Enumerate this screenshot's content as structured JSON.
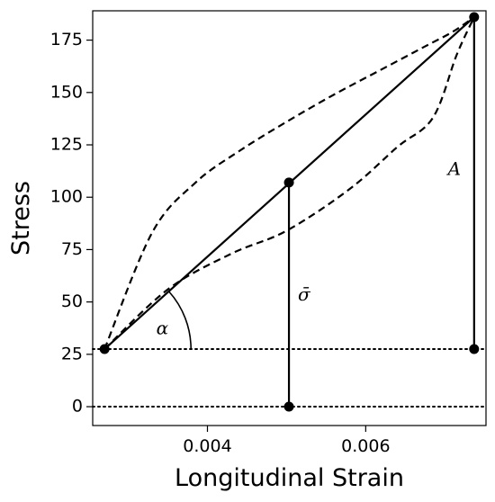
{
  "chart_data": {
    "type": "line",
    "title": "",
    "xlabel": "Longitudinal Strain",
    "ylabel": "Stress",
    "xlim": [
      0.00255,
      0.00752
    ],
    "ylim": [
      -9,
      189
    ],
    "x_ticks": [
      {
        "value": 0.004,
        "label": "0.004"
      },
      {
        "value": 0.006,
        "label": "0.006"
      }
    ],
    "y_ticks": [
      {
        "value": 0,
        "label": "0"
      },
      {
        "value": 25,
        "label": "25"
      },
      {
        "value": 50,
        "label": "50"
      },
      {
        "value": 75,
        "label": "75"
      },
      {
        "value": 100,
        "label": "100"
      },
      {
        "value": 125,
        "label": "125"
      },
      {
        "value": 150,
        "label": "150"
      },
      {
        "value": 175,
        "label": "175"
      }
    ],
    "grid": false,
    "series": [
      {
        "style": "dashed",
        "x": [
          0.0027,
          0.0033,
          0.00385,
          0.0044,
          0.005,
          0.0056,
          0.0062,
          0.00675,
          0.0071,
          0.00737
        ],
        "y": [
          27.5,
          83,
          107,
          122,
          136,
          149,
          161,
          172,
          179,
          186
        ]
      },
      {
        "style": "dashed",
        "x": [
          0.0027,
          0.0035,
          0.0043,
          0.005,
          0.0058,
          0.0064,
          0.00685,
          0.00715,
          0.00737
        ],
        "y": [
          27.5,
          56,
          73,
          84,
          104,
          124,
          138,
          168,
          186
        ]
      },
      {
        "style": "solid",
        "x": [
          0.0027,
          0.00737
        ],
        "y": [
          27.5,
          186
        ]
      },
      {
        "style": "solid",
        "x": [
          0.00503,
          0.00503
        ],
        "y": [
          0,
          107
        ]
      },
      {
        "style": "solid",
        "x": [
          0.00737,
          0.00737
        ],
        "y": [
          27.5,
          186
        ]
      }
    ],
    "points": [
      {
        "x": 0.0027,
        "y": 27.5
      },
      {
        "x": 0.00737,
        "y": 186
      },
      {
        "x": 0.00503,
        "y": 107
      },
      {
        "x": 0.00503,
        "y": 0
      },
      {
        "x": 0.00737,
        "y": 27.5
      }
    ],
    "hlines": [
      {
        "y": 27.5,
        "style": "dotted"
      },
      {
        "y": 0,
        "style": "dotted"
      }
    ],
    "angle_arc": {
      "center_x": 0.0027,
      "center_y": 27.5,
      "from_y": 27.5,
      "to_x": 0.00737,
      "to_y": 186,
      "label": "α"
    },
    "annotations": [
      {
        "text": "α",
        "x": 0.00343,
        "y": 37
      },
      {
        "text": "σ̄",
        "x": 0.00522,
        "y": 53
      },
      {
        "text": "A",
        "x": 0.00712,
        "y": 113
      }
    ]
  }
}
